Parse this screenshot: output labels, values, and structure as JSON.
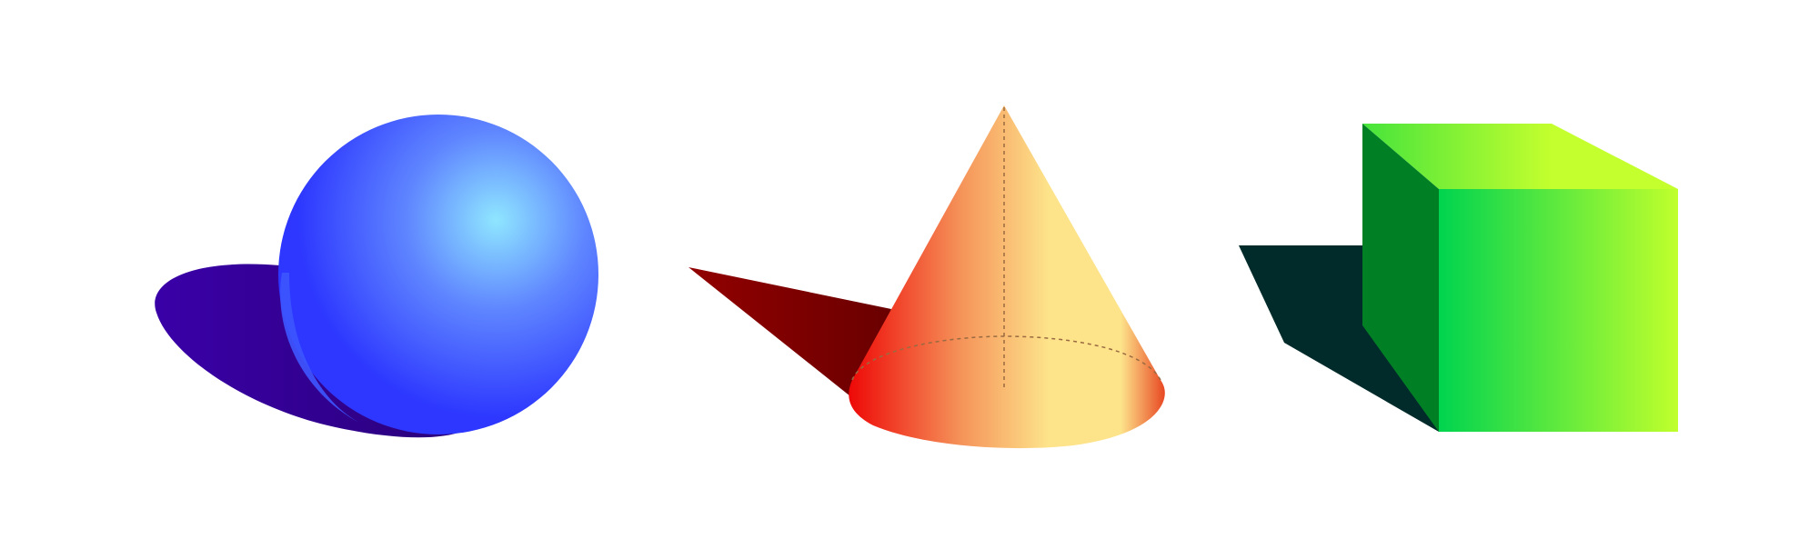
{
  "scene": {
    "background": "#ffffff",
    "shapes": [
      {
        "kind": "sphere",
        "colors": {
          "highlight": "#8fe6ff",
          "mid": "#5f86ff",
          "body": "#2d37ff",
          "shadow": "#3a00a8",
          "shadow_dark": "#2a007a"
        }
      },
      {
        "kind": "cone",
        "colors": {
          "left_edge": "#ee0a08",
          "mid": "#f5945a",
          "light": "#fde38a",
          "right_edge": "#e63a1a",
          "shadow": "#920000",
          "shadow_dark": "#6a0000",
          "guide": "#9a6a40"
        }
      },
      {
        "kind": "cube",
        "colors": {
          "front_left": "#00d44f",
          "front_right": "#c0ff2c",
          "top_left": "#46e43c",
          "top_right": "#c4ff2e",
          "side": "#007f25",
          "shadow": "#012a2a"
        }
      }
    ]
  }
}
